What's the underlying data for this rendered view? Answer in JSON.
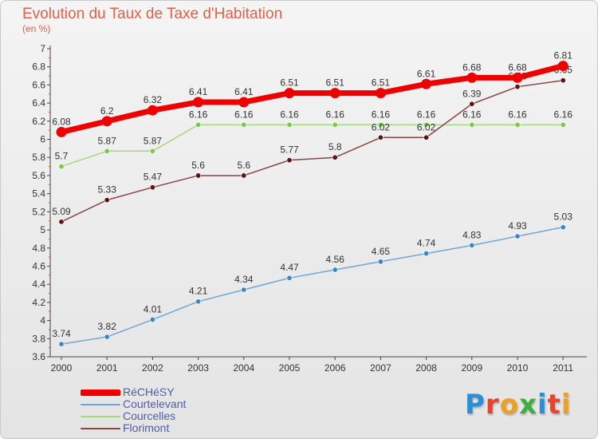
{
  "title": "Evolution du Taux de Taxe d'Habitation",
  "subtitle": "(en %)",
  "logo": {
    "text": "Proxiti",
    "letters": [
      {
        "ch": "P",
        "color": "#2a8fd4"
      },
      {
        "ch": "r",
        "color": "#e8442c"
      },
      {
        "ch": "o",
        "color": "#f0a020"
      },
      {
        "ch": "x",
        "color": "#3cae3c"
      },
      {
        "ch": "i",
        "color": "#2a8fd4"
      },
      {
        "ch": "t",
        "color": "#e8442c"
      },
      {
        "ch": "i",
        "color": "#f0a020"
      }
    ]
  },
  "chart_data": {
    "type": "line",
    "x": [
      "2000",
      "2001",
      "2002",
      "2003",
      "2004",
      "2005",
      "2006",
      "2007",
      "2008",
      "2009",
      "2010",
      "2011"
    ],
    "ylim": [
      3.6,
      7
    ],
    "yticks": [
      "3.6",
      "3.8",
      "4",
      "4.2",
      "4.4",
      "4.6",
      "4.8",
      "5",
      "5.2",
      "5.4",
      "5.6",
      "5.8",
      "6",
      "6.2",
      "6.4",
      "6.6",
      "6.8",
      "7"
    ],
    "grid": false,
    "legend_position": "bottom-left",
    "series": [
      {
        "name": "RéCHéSY",
        "color": "#ee0000",
        "width": 7,
        "values": [
          6.08,
          6.2,
          6.32,
          6.41,
          6.41,
          6.51,
          6.51,
          6.51,
          6.61,
          6.68,
          6.68,
          6.81
        ],
        "labels": [
          "6.08",
          "6.2",
          "6.32",
          "6.41",
          "6.41",
          "6.51",
          "6.51",
          "6.51",
          "6.61",
          "6.68",
          "6.68",
          "6.81"
        ]
      },
      {
        "name": "Courtelevant",
        "color": "#6fa6d6",
        "marker": "#3d86c6",
        "width": 1.5,
        "values": [
          3.74,
          3.82,
          4.01,
          4.21,
          4.34,
          4.47,
          4.56,
          4.65,
          4.74,
          4.83,
          4.93,
          5.03
        ],
        "labels": [
          "3.74",
          "3.82",
          "4.01",
          "4.21",
          "4.34",
          "4.47",
          "4.56",
          "4.65",
          "4.74",
          "4.83",
          "4.93",
          "5.03"
        ]
      },
      {
        "name": "Courcelles",
        "color": "#a3d87e",
        "marker": "#7cc84a",
        "width": 1.5,
        "values": [
          5.7,
          5.87,
          5.87,
          6.16,
          6.16,
          6.16,
          6.16,
          6.16,
          6.16,
          6.16,
          6.16,
          6.16
        ],
        "labels": [
          "5.7",
          "5.87",
          "5.87",
          "6.16",
          "6.16",
          "6.16",
          "6.16",
          "6.16",
          "6.16",
          "6.16",
          "6.16",
          "6.16"
        ]
      },
      {
        "name": "Florimont",
        "color": "#8a4444",
        "marker": "#5a1414",
        "width": 1.5,
        "values": [
          5.09,
          5.33,
          5.47,
          5.6,
          5.6,
          5.77,
          5.8,
          6.02,
          6.02,
          6.39,
          6.58,
          6.65
        ],
        "labels": [
          "5.09",
          "5.33",
          "5.47",
          "5.6",
          "5.6",
          "5.77",
          "5.8",
          "6.02",
          "6.02",
          "6.39",
          "6.58",
          "6.65"
        ]
      }
    ]
  }
}
